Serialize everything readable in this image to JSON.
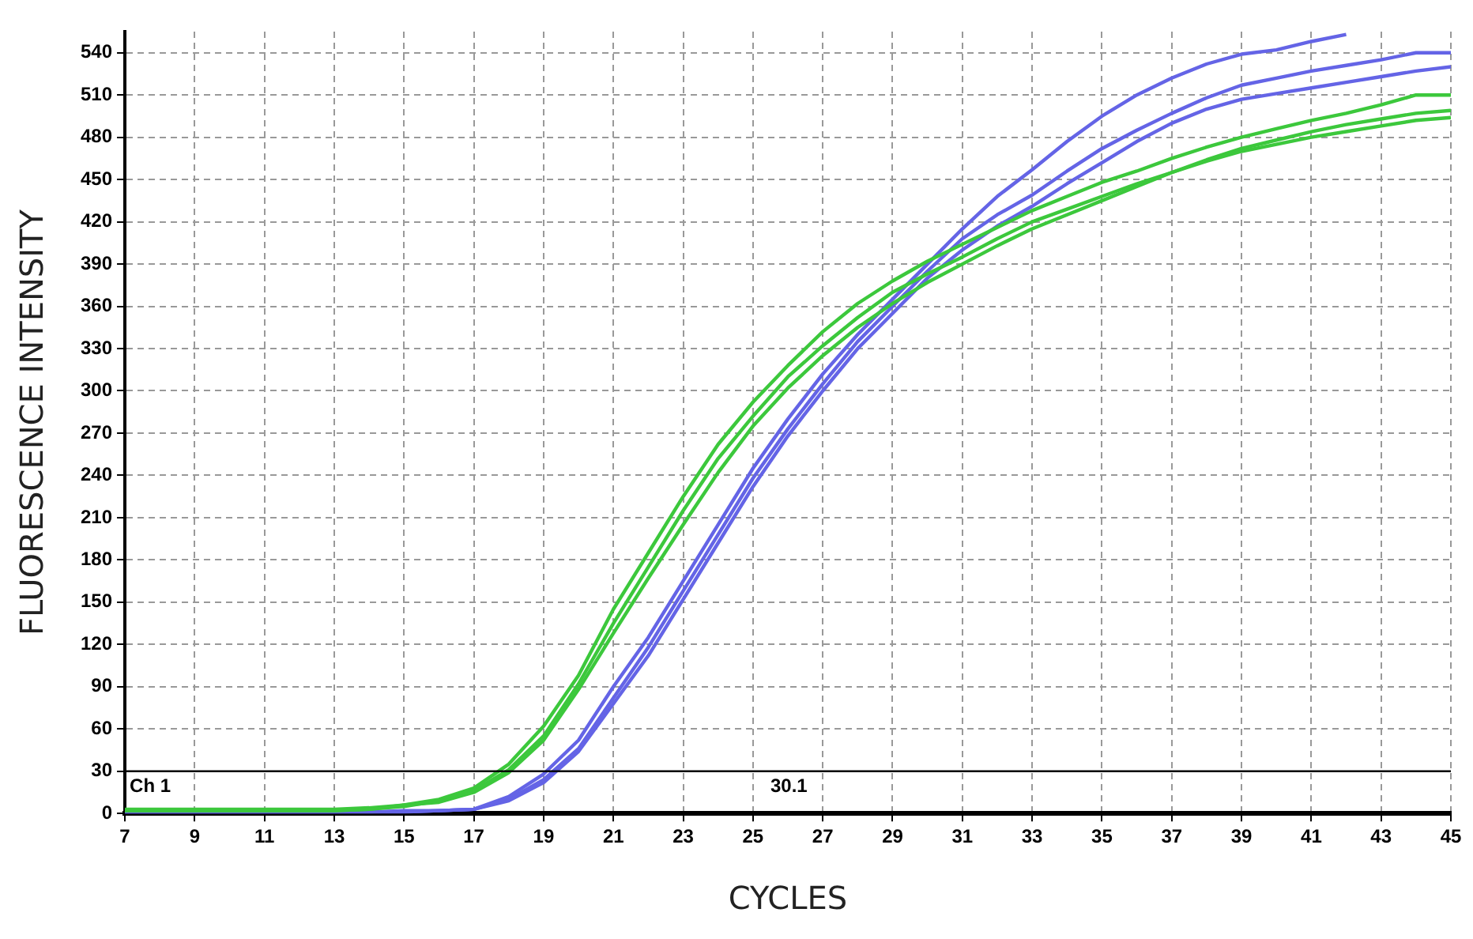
{
  "chart_data": {
    "type": "line",
    "xlabel": "CYCLES",
    "ylabel": "FLUORESCENCE INTENSITY",
    "x": [
      7,
      8,
      9,
      10,
      11,
      12,
      13,
      14,
      15,
      16,
      17,
      18,
      19,
      20,
      21,
      22,
      23,
      24,
      25,
      26,
      27,
      28,
      29,
      30,
      31,
      32,
      33,
      34,
      35,
      36,
      37,
      38,
      39,
      40,
      41,
      42,
      43,
      44,
      45
    ],
    "series": [
      {
        "color": "#3cc83c",
        "values": [
          2,
          2,
          2,
          2,
          2,
          2,
          2,
          3,
          6,
          10,
          18,
          35,
          62,
          98,
          145,
          185,
          225,
          262,
          292,
          318,
          342,
          362,
          378,
          392,
          404,
          416,
          428,
          438,
          448,
          456,
          465,
          473,
          480,
          486,
          492,
          497,
          503,
          510,
          510
        ]
      },
      {
        "color": "#3cc83c",
        "values": [
          2,
          2,
          2,
          2,
          2,
          2,
          2,
          3,
          5,
          9,
          16,
          31,
          55,
          92,
          135,
          175,
          215,
          252,
          282,
          310,
          332,
          352,
          370,
          383,
          395,
          408,
          420,
          429,
          438,
          447,
          455,
          463,
          470,
          475,
          480,
          484,
          488,
          492,
          494
        ]
      },
      {
        "color": "#3cc83c",
        "values": [
          3,
          3,
          3,
          3,
          3,
          3,
          3,
          4,
          6,
          8,
          15,
          29,
          52,
          88,
          128,
          167,
          205,
          242,
          275,
          302,
          325,
          345,
          362,
          377,
          390,
          403,
          415,
          425,
          435,
          445,
          455,
          464,
          472,
          478,
          484,
          489,
          493,
          497,
          499
        ]
      },
      {
        "color": "#6464e6",
        "values": [
          1,
          1,
          1,
          1,
          1,
          1,
          1,
          1,
          2,
          2,
          3,
          12,
          28,
          52,
          90,
          125,
          165,
          205,
          245,
          280,
          312,
          340,
          365,
          390,
          415,
          438,
          457,
          477,
          495,
          510,
          522,
          532,
          539,
          542,
          548,
          553,
          null,
          null,
          null
        ]
      },
      {
        "color": "#6464e6",
        "values": [
          1,
          1,
          1,
          1,
          1,
          1,
          1,
          1,
          1,
          2,
          3,
          10,
          24,
          46,
          82,
          118,
          158,
          198,
          238,
          273,
          305,
          335,
          360,
          385,
          408,
          425,
          439,
          456,
          472,
          485,
          497,
          508,
          517,
          522,
          527,
          531,
          535,
          540,
          540
        ]
      },
      {
        "color": "#6464e6",
        "values": [
          1,
          1,
          1,
          1,
          1,
          1,
          1,
          1,
          1,
          2,
          3,
          9,
          22,
          44,
          78,
          112,
          152,
          192,
          232,
          268,
          300,
          330,
          355,
          380,
          400,
          417,
          431,
          447,
          462,
          477,
          490,
          500,
          507,
          511,
          515,
          519,
          523,
          527,
          530
        ]
      }
    ],
    "xlim": [
      7,
      45
    ],
    "xticks": [
      7,
      9,
      11,
      13,
      15,
      17,
      19,
      21,
      23,
      25,
      27,
      29,
      31,
      33,
      35,
      37,
      39,
      41,
      43,
      45
    ],
    "ylim": [
      0,
      555
    ],
    "yticks": [
      0,
      30,
      60,
      90,
      120,
      150,
      180,
      210,
      240,
      270,
      300,
      330,
      360,
      390,
      420,
      450,
      480,
      510,
      540
    ],
    "ref_lines": [
      {
        "axis": "y",
        "value": 30,
        "label": "Ch 1",
        "color": "#000000"
      }
    ],
    "annotations": [
      {
        "text": "30.1",
        "x": 25.5,
        "y": 30
      }
    ],
    "grid": true,
    "legend": false,
    "marker": "none",
    "line_style": "solid"
  }
}
